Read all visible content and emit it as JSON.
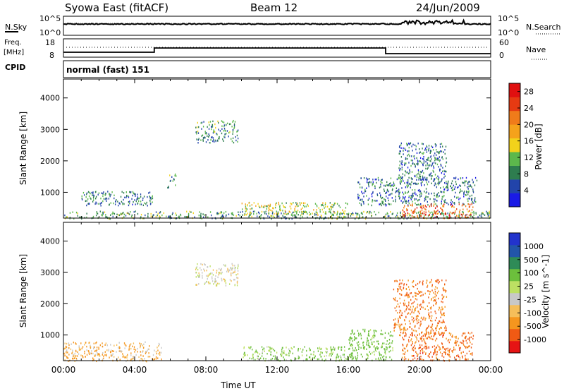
{
  "header": {
    "station": "Syowa East (fitACF)",
    "beam": "Beam 12",
    "date": "24/Jun/2009"
  },
  "strip_labels": {
    "nsky": "N.Sky",
    "nsearch": "N.Search",
    "freq_top": "Freq.",
    "freq_unit": "[MHz]",
    "nave": "Nave",
    "cpid": "CPID",
    "cpid_text": "normal (fast) 151"
  },
  "strip_ticks": {
    "noise_hi": "10^5",
    "noise_lo": "10^0",
    "freq_hi": "18",
    "freq_lo": "8",
    "nave_hi": "60",
    "nave_lo": "0"
  },
  "colors": {
    "power_scale": [
      "#1a1ae6",
      "#2244aa",
      "#2e7d4f",
      "#5cb84c",
      "#f2d21b",
      "#f5a21b",
      "#f07b1a",
      "#e63a12",
      "#e01010"
    ],
    "velocity_scale": [
      "#e61414",
      "#f05a14",
      "#f5961e",
      "#f5be5a",
      "#c8c8c8",
      "#bde063",
      "#6cbf3c",
      "#2e8b57",
      "#2255aa",
      "#2233cc"
    ]
  },
  "chart_data": [
    {
      "type": "heatmap",
      "title": "",
      "xlabel": "",
      "ylabel": "Slant Range [km]",
      "yticks": [
        "1000",
        "2000",
        "3000",
        "4000"
      ],
      "ylim": [
        180,
        4600
      ],
      "xlim_hours": [
        0,
        24
      ],
      "colorbar_label": "Power [dB]",
      "colorbar_ticks": [
        "4",
        "8",
        "12",
        "16",
        "20",
        "24",
        "28"
      ],
      "colorbar_range": [
        0,
        30
      ],
      "regions": [
        {
          "t0": 0.0,
          "t1": 24.0,
          "r0": 180,
          "r1": 420,
          "level": 10
        },
        {
          "t0": 1.0,
          "t1": 5.0,
          "r0": 600,
          "r1": 1050,
          "level": 8
        },
        {
          "t0": 5.8,
          "t1": 6.3,
          "r0": 1150,
          "r1": 1600,
          "level": 9
        },
        {
          "t0": 7.4,
          "t1": 9.8,
          "r0": 2600,
          "r1": 3300,
          "level": 9
        },
        {
          "t0": 10.0,
          "t1": 16.0,
          "r0": 300,
          "r1": 700,
          "level": 14
        },
        {
          "t0": 16.5,
          "t1": 23.2,
          "r0": 600,
          "r1": 1500,
          "level": 7
        },
        {
          "t0": 19.0,
          "t1": 23.0,
          "r0": 200,
          "r1": 650,
          "level": 24
        },
        {
          "t0": 18.8,
          "t1": 21.5,
          "r0": 1300,
          "r1": 2600,
          "level": 7
        }
      ]
    },
    {
      "type": "heatmap",
      "title": "",
      "xlabel": "Time UT",
      "ylabel": "Slant Range [km]",
      "yticks": [
        "1000",
        "2000",
        "3000",
        "4000"
      ],
      "ylim": [
        180,
        4600
      ],
      "xticks": [
        "00:00",
        "04:00",
        "08:00",
        "12:00",
        "16:00",
        "20:00",
        "00:00"
      ],
      "xlim_hours": [
        0,
        24
      ],
      "colorbar_label": "Velocity [m s^-1]",
      "colorbar_ticks": [
        "-1000",
        "-500",
        "-100",
        "-25",
        "25",
        "100",
        "500",
        "1000"
      ],
      "colorbar_range": [
        -1200,
        1200
      ],
      "regions": [
        {
          "t0": 0.0,
          "t1": 5.5,
          "r0": 180,
          "r1": 800,
          "velocity": -60
        },
        {
          "t0": 7.4,
          "t1": 9.8,
          "r0": 2600,
          "r1": 3300,
          "velocity": 0
        },
        {
          "t0": 10.0,
          "t1": 16.0,
          "r0": 200,
          "r1": 650,
          "velocity": 80
        },
        {
          "t0": 16.0,
          "t1": 18.5,
          "r0": 200,
          "r1": 1200,
          "velocity": 150
        },
        {
          "t0": 18.5,
          "t1": 21.5,
          "r0": 1000,
          "r1": 2800,
          "velocity": -300
        },
        {
          "t0": 19.0,
          "t1": 23.0,
          "r0": 200,
          "r1": 1100,
          "velocity": -400
        }
      ]
    }
  ]
}
